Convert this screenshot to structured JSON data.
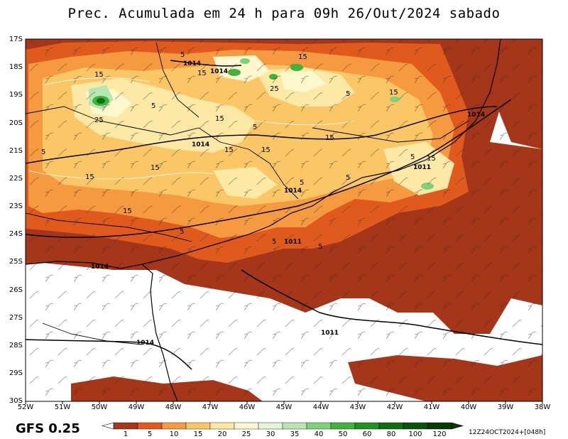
{
  "title": "Prec. Acumulada em 24 h para 09h 26/Out/2024 sabado",
  "model": "GFS 0.25",
  "run_stamp": "12Z24OCT2024+[048h]",
  "lat_labels": [
    "17S",
    "18S",
    "19S",
    "20S",
    "21S",
    "22S",
    "23S",
    "24S",
    "25S",
    "26S",
    "27S",
    "28S",
    "29S",
    "30S"
  ],
  "lon_labels": [
    "52W",
    "51W",
    "50W",
    "49W",
    "48W",
    "47W",
    "46W",
    "45W",
    "44W",
    "43W",
    "42W",
    "41W",
    "40W",
    "39W",
    "38W"
  ],
  "colorbar": {
    "labels": [
      "1",
      "5",
      "10",
      "15",
      "20",
      "25",
      "30",
      "35",
      "40",
      "50",
      "60",
      "80",
      "100",
      "120"
    ],
    "colors": [
      "#a5361a",
      "#e05a1e",
      "#f59a40",
      "#fbc766",
      "#fde8a6",
      "#fff8cf",
      "#e2f6d8",
      "#b8e6b3",
      "#7fd27a",
      "#3fb33b",
      "#1f931d",
      "#0f6e12",
      "#0a520b",
      "#063a06"
    ]
  },
  "isobar_labels": [
    "1014",
    "1014",
    "1014",
    "1014",
    "1014",
    "1014",
    "1011",
    "1011",
    "1011",
    "1014"
  ],
  "contour_labels": [
    "5",
    "15",
    "15",
    "15",
    "25",
    "25",
    "5",
    "15",
    "5",
    "15",
    "15",
    "5",
    "15",
    "15",
    "5",
    "5",
    "15",
    "15",
    "15",
    "5",
    "5",
    "15",
    "5",
    "5",
    "5"
  ]
}
